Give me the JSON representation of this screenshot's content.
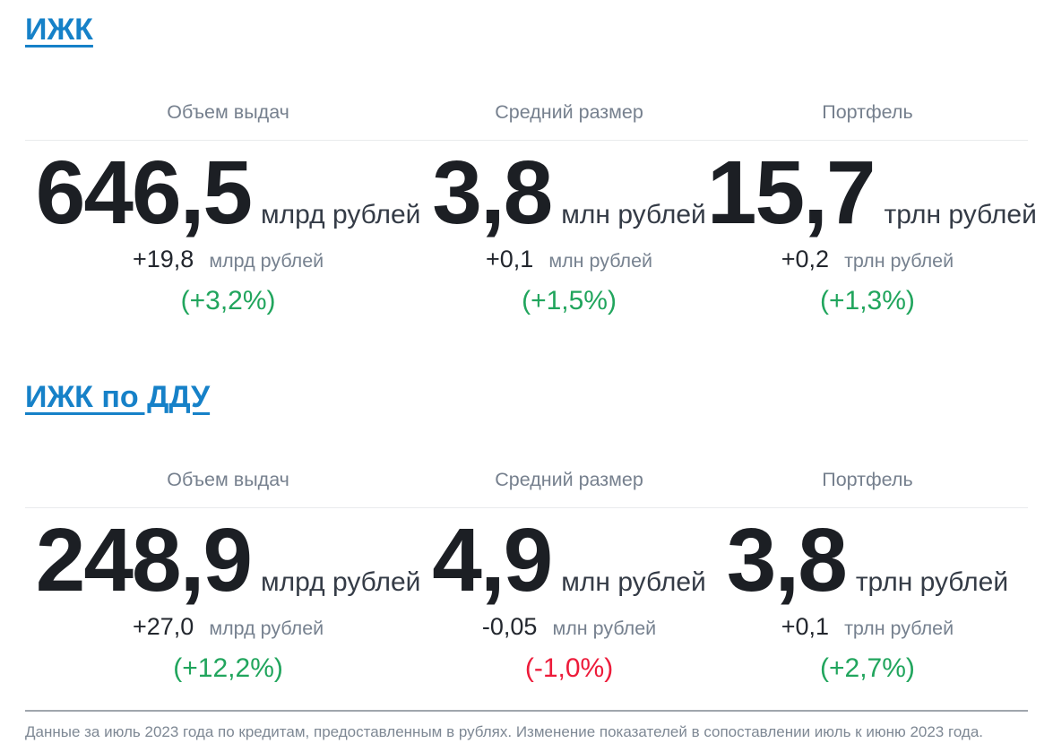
{
  "colors": {
    "link_blue": "#1681c8",
    "positive_green": "#21a55d",
    "negative_red": "#ed1b3a",
    "value_dark": "#1c1f24",
    "label_gray": "#76808e"
  },
  "sections": [
    {
      "title": "ИЖК",
      "metrics": [
        {
          "header": "Объем выдач",
          "value": "646,5",
          "unit": "млрд рублей",
          "delta": "+19,8",
          "delta_unit": "млрд рублей",
          "pct": "(+3,2%)",
          "trend": "positive"
        },
        {
          "header": "Средний размер",
          "value": "3,8",
          "unit": "млн рублей",
          "delta": "+0,1",
          "delta_unit": "млн рублей",
          "pct": "(+1,5%)",
          "trend": "positive"
        },
        {
          "header": "Портфель",
          "value": "15,7",
          "unit": "трлн рублей",
          "delta": "+0,2",
          "delta_unit": "трлн рублей",
          "pct": "(+1,3%)",
          "trend": "positive"
        }
      ]
    },
    {
      "title": "ИЖК по ДДУ",
      "metrics": [
        {
          "header": "Объем выдач",
          "value": "248,9",
          "unit": "млрд рублей",
          "delta": "+27,0",
          "delta_unit": "млрд рублей",
          "pct": "(+12,2%)",
          "trend": "positive"
        },
        {
          "header": "Средний размер",
          "value": "4,9",
          "unit": "млн рублей",
          "delta": "-0,05",
          "delta_unit": "млн рублей",
          "pct": "(-1,0%)",
          "trend": "negative"
        },
        {
          "header": "Портфель",
          "value": "3,8",
          "unit": "трлн рублей",
          "delta": "+0,1",
          "delta_unit": "трлн рублей",
          "pct": "(+2,7%)",
          "trend": "positive"
        }
      ]
    }
  ],
  "footer": {
    "note": "Данные за июль 2023 года по кредитам, предоставленным в рублях. Изменение показателей в сопоставлении июль к июню 2023 года."
  }
}
